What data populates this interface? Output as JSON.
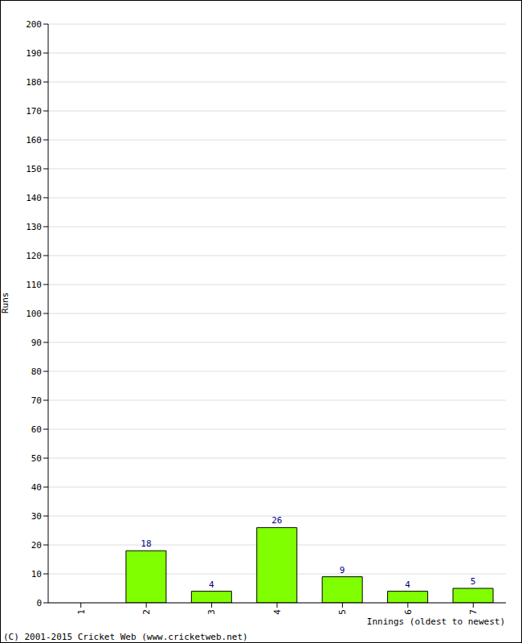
{
  "chart_data": {
    "type": "bar",
    "categories": [
      "1",
      "2",
      "3",
      "4",
      "5",
      "6",
      "7"
    ],
    "values": [
      0,
      18,
      4,
      26,
      9,
      4,
      5
    ],
    "color": "#80ff00",
    "ylim": [
      0,
      200
    ],
    "yticks": [
      0,
      10,
      20,
      30,
      40,
      50,
      60,
      70,
      80,
      90,
      100,
      110,
      120,
      130,
      140,
      150,
      160,
      170,
      180,
      190,
      200
    ],
    "grid": true,
    "data_labels": true,
    "x_label": "Innings (oldest to newest)",
    "y_label": "Runs",
    "annotations": [
      "(C) 2001-2015 Cricket Web (www.cricketweb.net)"
    ]
  }
}
